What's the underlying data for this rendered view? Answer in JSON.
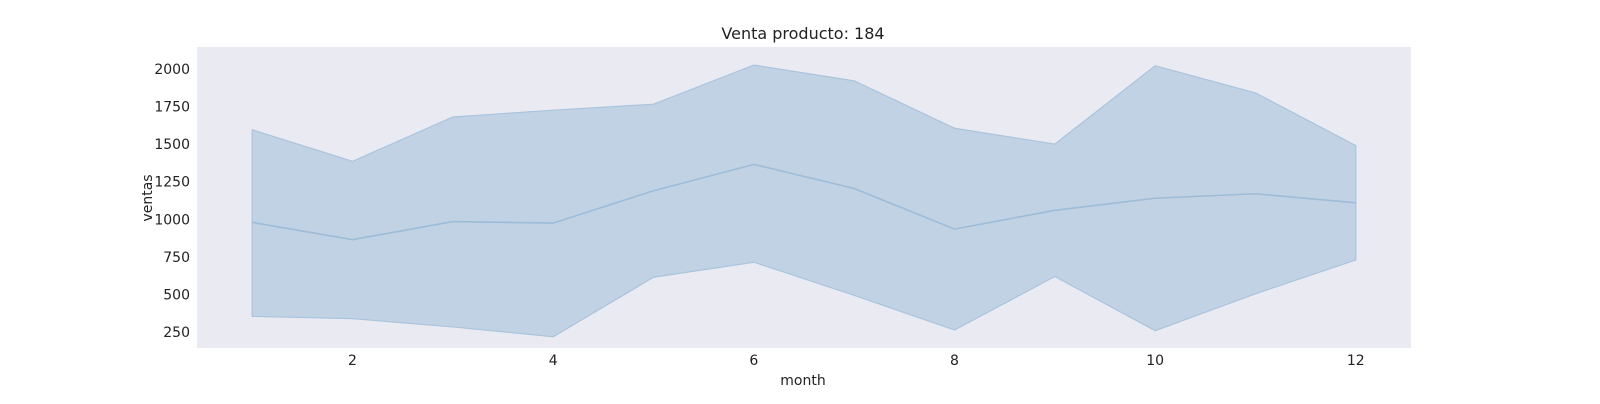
{
  "chart_data": {
    "type": "area",
    "title": "Venta producto: 184",
    "xlabel": "month",
    "ylabel": "ventas",
    "x": [
      1,
      2,
      3,
      4,
      5,
      6,
      7,
      8,
      9,
      10,
      11,
      12
    ],
    "series": [
      {
        "mean": [
          980,
          865,
          985,
          975,
          1190,
          1365,
          1205,
          935,
          1060,
          1140,
          1170,
          1110
        ],
        "lower": [
          355,
          340,
          285,
          220,
          615,
          715,
          495,
          265,
          620,
          260,
          505,
          730
        ],
        "upper": [
          1595,
          1385,
          1680,
          1725,
          1765,
          2025,
          1920,
          1605,
          1500,
          2020,
          1840,
          1490
        ]
      }
    ],
    "xticks": [
      2,
      4,
      6,
      8,
      10,
      12
    ],
    "yticks": [
      250,
      500,
      750,
      1000,
      1250,
      1500,
      1750,
      2000
    ],
    "xlim": [
      0.45,
      12.55
    ],
    "ylim": [
      145,
      2145
    ],
    "grid": false,
    "colors": {
      "plot_background": "#eaeaf2",
      "band_fill": "#aac4dd",
      "line": "#9dbcd8"
    }
  }
}
